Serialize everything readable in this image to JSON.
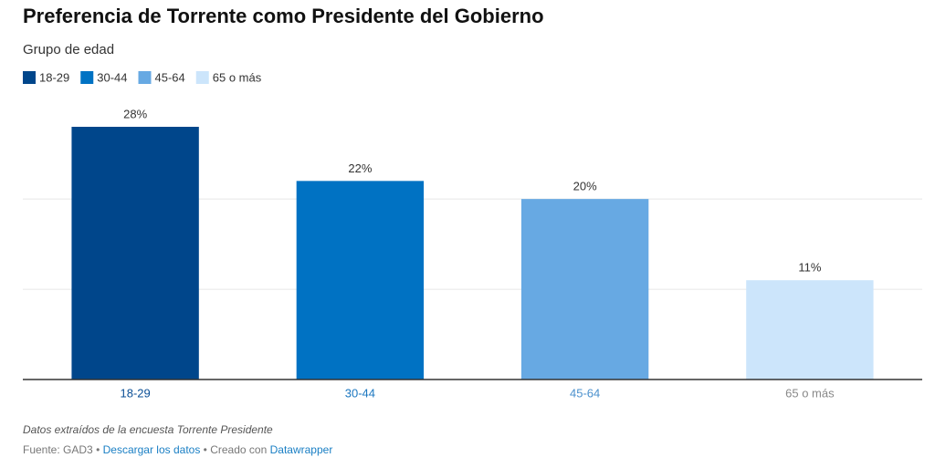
{
  "chart_data": {
    "type": "bar",
    "title": "Preferencia de Torrente como Presidente del Gobierno",
    "subtitle": "Grupo de edad",
    "categories": [
      "18-29",
      "30-44",
      "45-64",
      "65 o más"
    ],
    "values": [
      28,
      22,
      20,
      11
    ],
    "value_labels": [
      "28%",
      "22%",
      "20%",
      "11%"
    ],
    "colors": [
      "#00468b",
      "#0072c3",
      "#67a9e3",
      "#cce5fb"
    ],
    "ylim": [
      0,
      28
    ],
    "yticks": [
      10,
      20
    ],
    "grid": true,
    "note": "Datos extraídos de la encuesta Torrente Presidente",
    "source": "Fuente: GAD3",
    "separator": "•",
    "download": "Descargar los datos",
    "credit": "Creado con",
    "tool": "Datawrapper"
  }
}
